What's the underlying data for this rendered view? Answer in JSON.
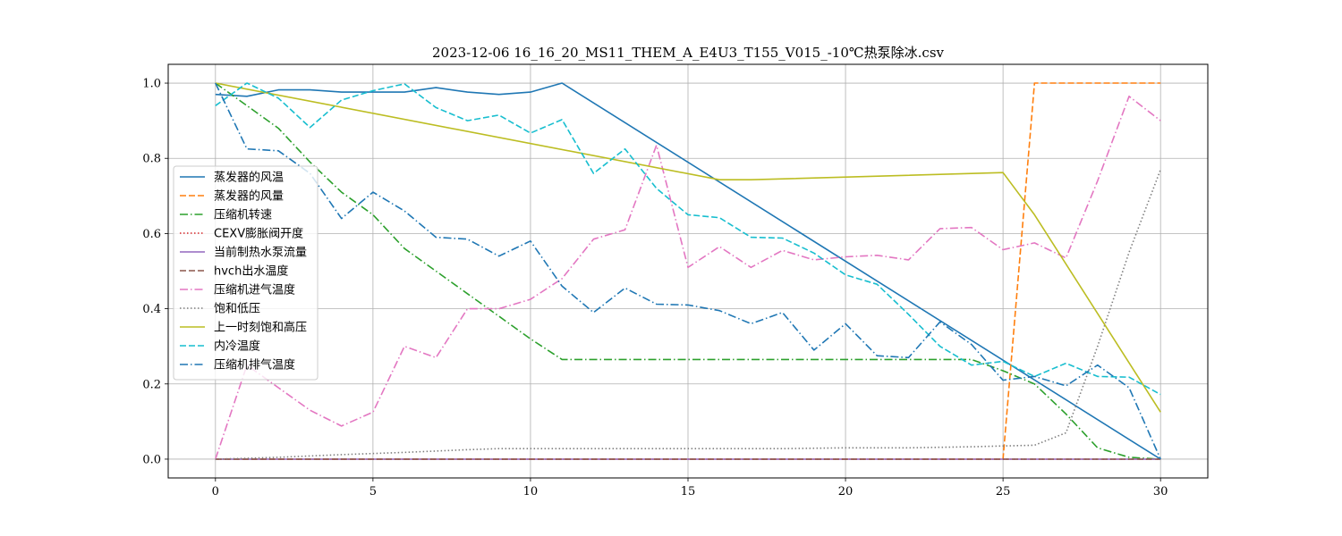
{
  "chart_data": {
    "type": "line",
    "title": "2023-12-06 16_16_20_MS11_THEM_A_E4U3_T155_V015_-10℃热泵除冰.csv",
    "xlabel": "",
    "ylabel": "",
    "xlim": [
      -1.5,
      31.5
    ],
    "ylim": [
      -0.05,
      1.05
    ],
    "xticks": [
      0,
      5,
      10,
      15,
      20,
      25,
      30
    ],
    "yticks": [
      0.0,
      0.2,
      0.4,
      0.6,
      0.8,
      1.0
    ],
    "ytick_labels": [
      "0.0",
      "0.2",
      "0.4",
      "0.6",
      "0.8",
      "1.0"
    ],
    "grid": true,
    "legend_position": "center-left",
    "series": [
      {
        "name": "蒸发器的风温",
        "color": "#1f77b4",
        "dash": "solid",
        "x": [
          0,
          1,
          2,
          3,
          4,
          5,
          6,
          7,
          8,
          9,
          10,
          11,
          30
        ],
        "y": [
          0.97,
          0.965,
          0.982,
          0.982,
          0.976,
          0.976,
          0.976,
          0.988,
          0.976,
          0.97,
          0.976,
          1.0,
          0.0
        ]
      },
      {
        "name": "蒸发器的风量",
        "color": "#ff7f0e",
        "dash": "dashed",
        "x": [
          0,
          25,
          26,
          30
        ],
        "y": [
          0.0,
          0.0,
          1.0,
          1.0
        ]
      },
      {
        "name": "压缩机转速",
        "color": "#2ca02c",
        "dash": "dashdot",
        "x": [
          0,
          1,
          2,
          3,
          4,
          5,
          6,
          7,
          8,
          9,
          10,
          11,
          12,
          13,
          14,
          15,
          16,
          17,
          18,
          19,
          20,
          21,
          22,
          23,
          24,
          25,
          26,
          27,
          28,
          29,
          30
        ],
        "y": [
          1.0,
          0.94,
          0.88,
          0.79,
          0.71,
          0.65,
          0.56,
          0.5,
          0.44,
          0.38,
          0.32,
          0.265,
          0.265,
          0.265,
          0.265,
          0.265,
          0.265,
          0.265,
          0.265,
          0.265,
          0.265,
          0.265,
          0.265,
          0.265,
          0.265,
          0.235,
          0.2,
          0.12,
          0.03,
          0.005,
          0.0
        ]
      },
      {
        "name": "CEXV膨胀阀开度",
        "color": "#d62728",
        "dash": "dotted",
        "x": [
          0,
          30
        ],
        "y": [
          0.0,
          0.0
        ]
      },
      {
        "name": "当前制热水泵流量",
        "color": "#9467bd",
        "dash": "solid",
        "x": [
          0,
          30
        ],
        "y": [
          0.0,
          0.0
        ]
      },
      {
        "name": "hvch出水温度",
        "color": "#8c564b",
        "dash": "dashed",
        "x": [
          0,
          30
        ],
        "y": [
          0.0,
          0.0
        ]
      },
      {
        "name": "压缩机进气温度",
        "color": "#e377c2",
        "dash": "dashdot",
        "x": [
          0,
          1,
          2,
          3,
          4,
          5,
          6,
          7,
          8,
          9,
          10,
          11,
          12,
          13,
          14,
          15,
          16,
          17,
          18,
          19,
          20,
          21,
          22,
          23,
          24,
          25,
          26,
          27,
          28,
          29,
          30
        ],
        "y": [
          0.0,
          0.25,
          0.19,
          0.13,
          0.088,
          0.125,
          0.3,
          0.27,
          0.4,
          0.4,
          0.425,
          0.48,
          0.585,
          0.61,
          0.835,
          0.51,
          0.565,
          0.51,
          0.555,
          0.53,
          0.538,
          0.542,
          0.53,
          0.613,
          0.616,
          0.557,
          0.575,
          0.535,
          0.74,
          0.965,
          0.9
        ]
      },
      {
        "name": "饱和低压",
        "color": "#7f7f7f",
        "dash": "dotted",
        "x": [
          0,
          2,
          4,
          6,
          8,
          9,
          10,
          12,
          14,
          16,
          18,
          20,
          22,
          24,
          25,
          26,
          27,
          28,
          29,
          30
        ],
        "y": [
          0.0,
          0.005,
          0.012,
          0.018,
          0.025,
          0.028,
          0.028,
          0.028,
          0.028,
          0.028,
          0.028,
          0.03,
          0.03,
          0.033,
          0.035,
          0.037,
          0.07,
          0.3,
          0.55,
          0.77
        ]
      },
      {
        "name": "上一时刻饱和高压",
        "color": "#bcbd22",
        "dash": "solid",
        "x": [
          0,
          16,
          17,
          25,
          26,
          30
        ],
        "y": [
          1.0,
          0.743,
          0.743,
          0.762,
          0.65,
          0.125
        ]
      },
      {
        "name": "内冷温度",
        "color": "#17becf",
        "dash": "dashed",
        "x": [
          0,
          1,
          2,
          3,
          4,
          5,
          6,
          7,
          8,
          9,
          10,
          11,
          12,
          13,
          14,
          15,
          16,
          17,
          18,
          19,
          20,
          21,
          22,
          23,
          24,
          25,
          26,
          27,
          28,
          29,
          30
        ],
        "y": [
          0.94,
          1.0,
          0.96,
          0.882,
          0.955,
          0.98,
          0.998,
          0.935,
          0.9,
          0.915,
          0.867,
          0.903,
          0.76,
          0.825,
          0.72,
          0.65,
          0.642,
          0.59,
          0.588,
          0.548,
          0.49,
          0.465,
          0.385,
          0.3,
          0.25,
          0.26,
          0.22,
          0.255,
          0.22,
          0.218,
          0.172
        ]
      },
      {
        "name": "压缩机排气温度",
        "color": "#1f77b4",
        "dash": "dashdot",
        "x": [
          0,
          1,
          2,
          3,
          4,
          5,
          6,
          7,
          8,
          9,
          10,
          11,
          12,
          13,
          14,
          15,
          16,
          17,
          18,
          19,
          20,
          21,
          22,
          23,
          24,
          25,
          26,
          27,
          28,
          29,
          30
        ],
        "y": [
          1.0,
          0.825,
          0.82,
          0.76,
          0.64,
          0.71,
          0.66,
          0.59,
          0.585,
          0.54,
          0.58,
          0.46,
          0.39,
          0.455,
          0.412,
          0.41,
          0.395,
          0.36,
          0.39,
          0.29,
          0.36,
          0.275,
          0.27,
          0.365,
          0.305,
          0.21,
          0.22,
          0.195,
          0.25,
          0.19,
          0.0
        ]
      }
    ]
  }
}
